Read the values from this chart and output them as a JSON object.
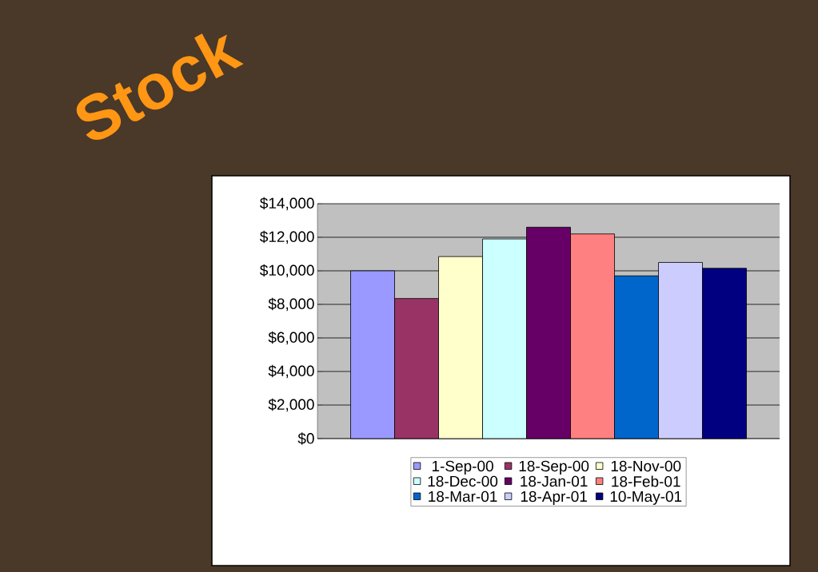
{
  "chart_data": {
    "type": "bar",
    "title": "Stock",
    "categories": [
      null
    ],
    "series": [
      {
        "name": "1-Sep-00",
        "color": "#9999ff",
        "values": [
          10000
        ]
      },
      {
        "name": "18-Sep-00",
        "color": "#993366",
        "values": [
          8350
        ]
      },
      {
        "name": "18-Nov-00",
        "color": "#ffffcc",
        "values": [
          10850
        ]
      },
      {
        "name": "18-Dec-00",
        "color": "#ccffff",
        "values": [
          11900
        ]
      },
      {
        "name": "18-Jan-01",
        "color": "#660066",
        "values": [
          12600
        ]
      },
      {
        "name": "18-Feb-01",
        "color": "#ff8080",
        "values": [
          12200
        ]
      },
      {
        "name": "18-Mar-01",
        "color": "#0066cc",
        "values": [
          9700
        ]
      },
      {
        "name": "18-Apr-01",
        "color": "#ccccff",
        "values": [
          10500
        ]
      },
      {
        "name": "10-May-01",
        "color": "#000080",
        "values": [
          10150
        ]
      }
    ],
    "ylim": [
      0,
      14000
    ],
    "yticks": [
      {
        "value": 0,
        "label": "$0"
      },
      {
        "value": 2000,
        "label": "$2,000"
      },
      {
        "value": 4000,
        "label": "$4,000"
      },
      {
        "value": 6000,
        "label": "$6,000"
      },
      {
        "value": 8000,
        "label": "$8,000"
      },
      {
        "value": 10000,
        "label": "$10,000"
      },
      {
        "value": 12000,
        "label": "$12,000"
      },
      {
        "value": 14000,
        "label": "$14,000"
      }
    ],
    "grid": "y",
    "legend": "bottom"
  }
}
